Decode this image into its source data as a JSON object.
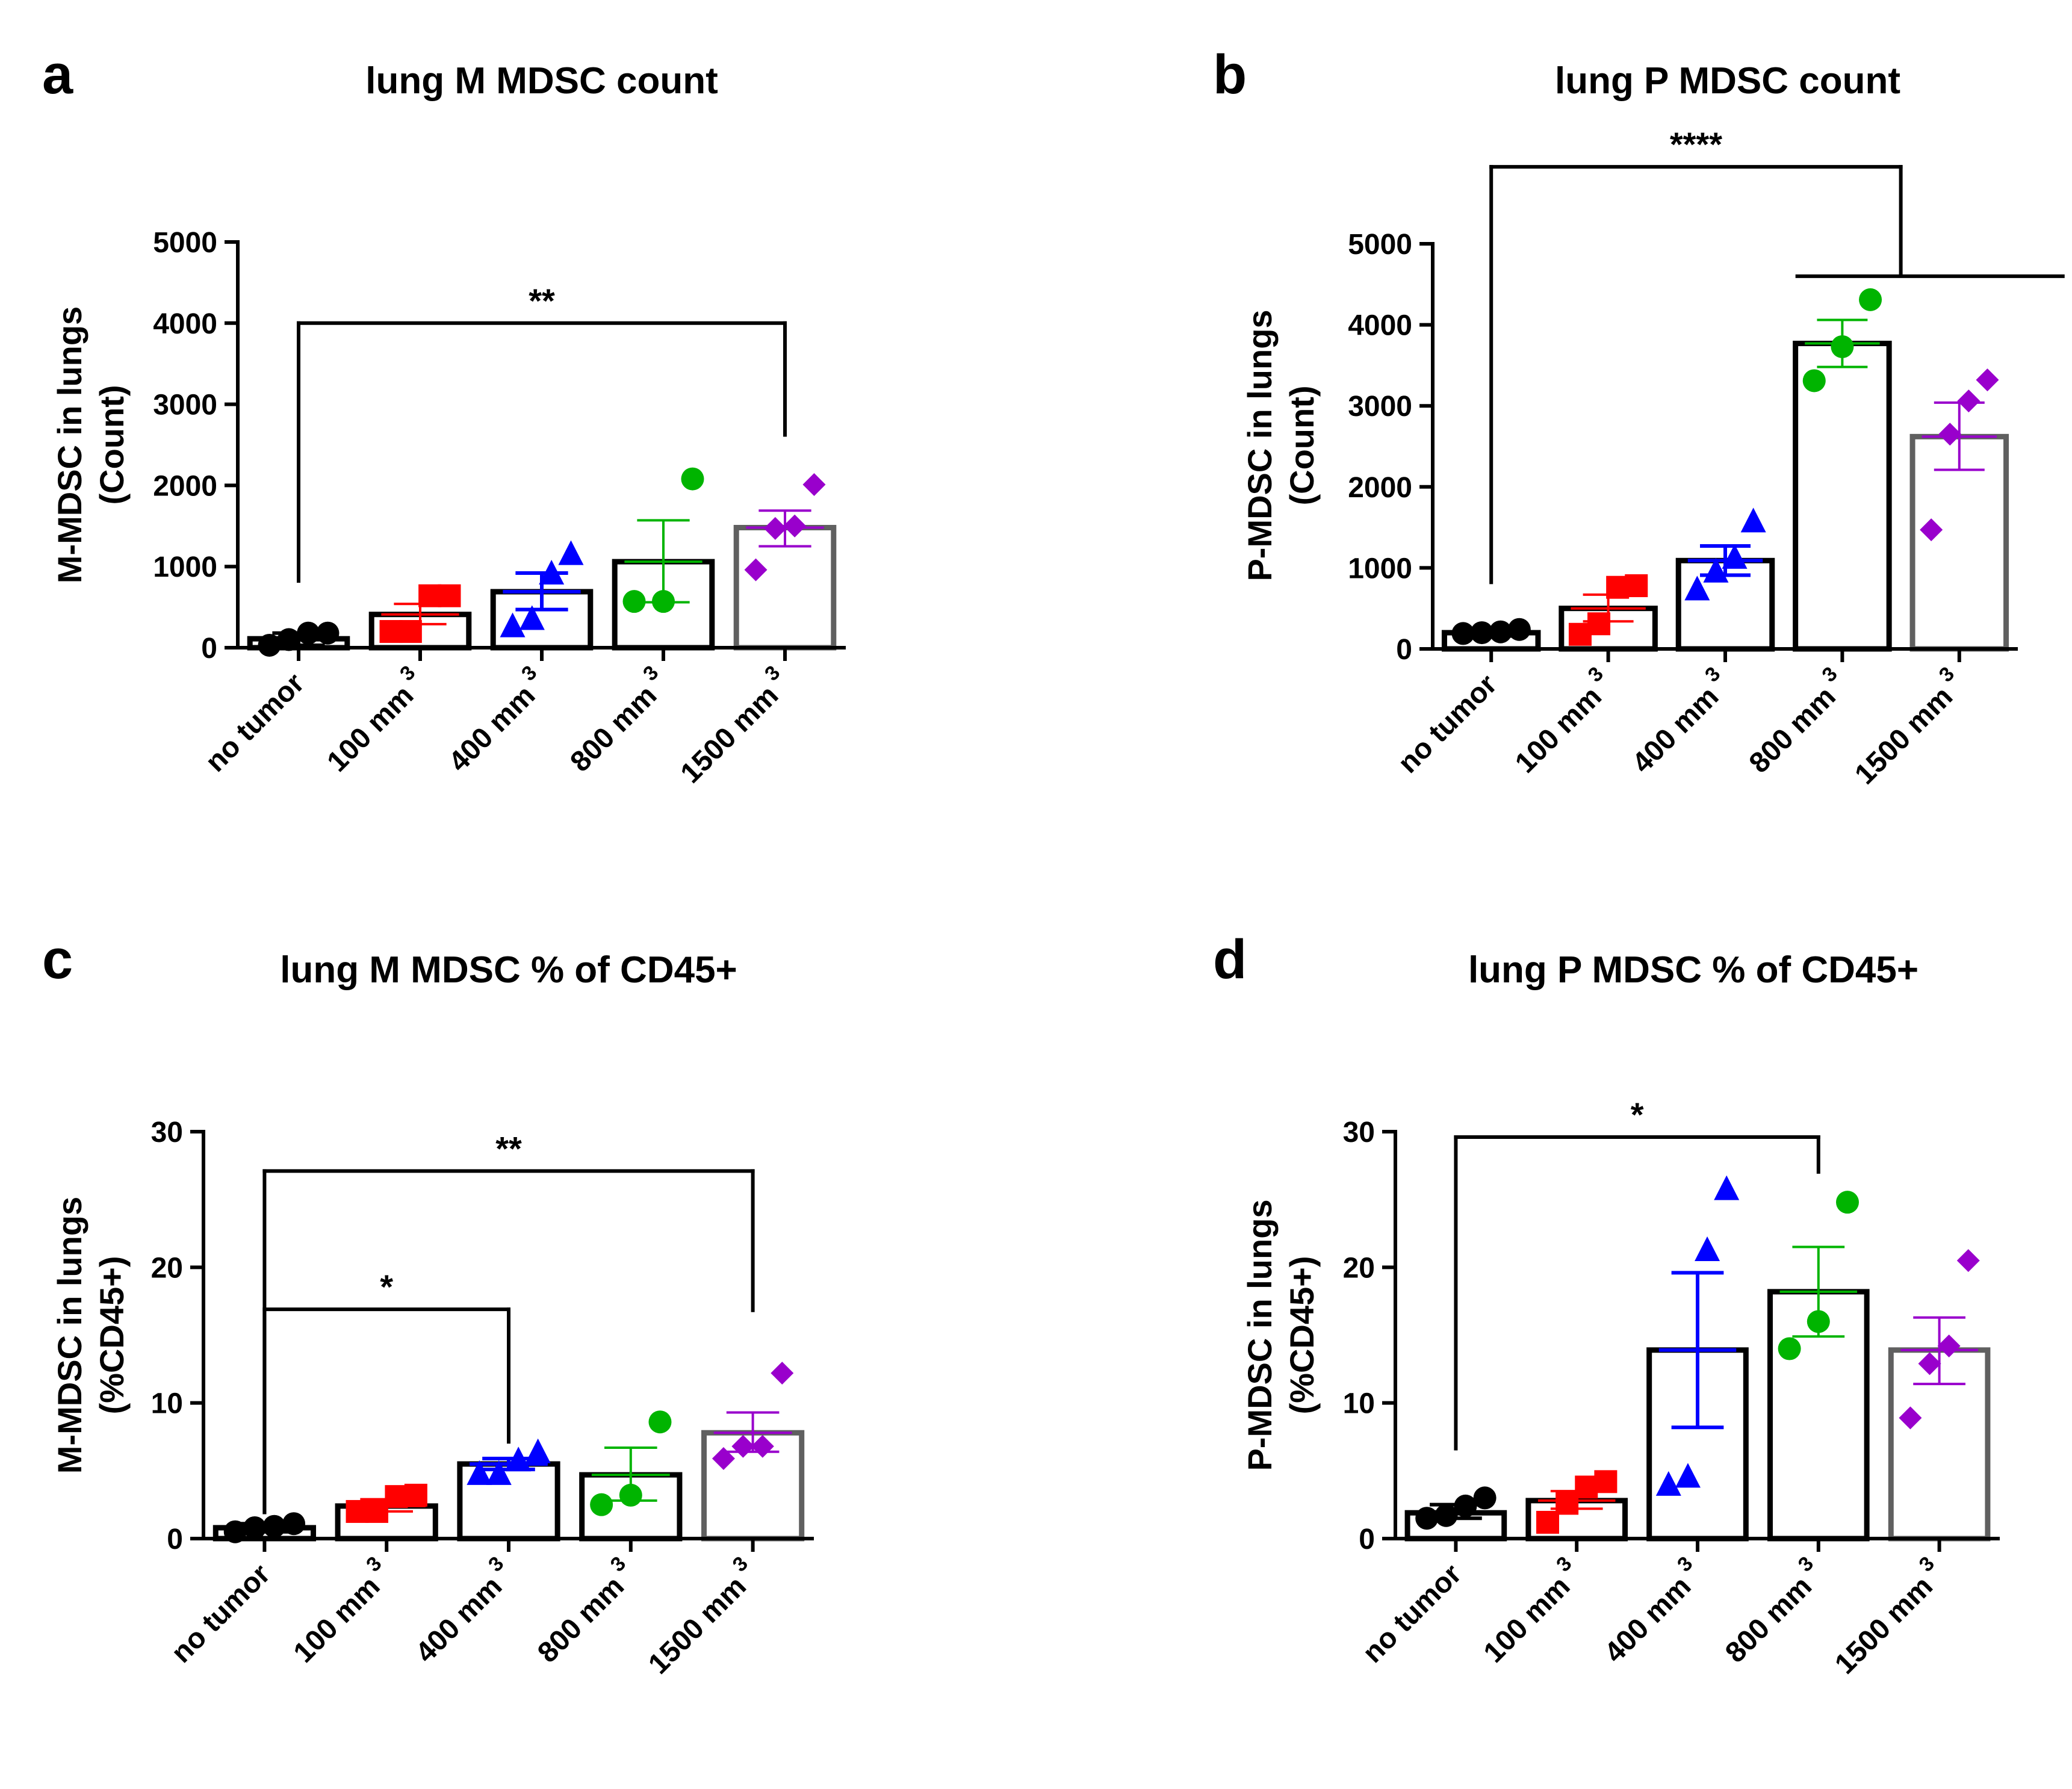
{
  "chart_data": [
    {
      "panel_label": "a",
      "type": "bar",
      "title": "lung M MDSC count",
      "ylabel_lines": [
        "M-MDSC in lungs",
        "(Count)"
      ],
      "categories": [
        {
          "text": "no tumor",
          "sup": ""
        },
        {
          "text": "100 mm",
          "sup": "3"
        },
        {
          "text": "400 mm",
          "sup": "3"
        },
        {
          "text": "800 mm",
          "sup": "3"
        },
        {
          "text": "1500 mm",
          "sup": "3"
        }
      ],
      "yticks": [
        0,
        1000,
        2000,
        3000,
        4000,
        5000
      ],
      "ylim": [
        0,
        5000
      ],
      "bars": [
        {
          "mean": 110,
          "err": [
            30,
            180
          ],
          "points": [
            30,
            100,
            180,
            180
          ],
          "marker": "circle",
          "color": "#000000",
          "edge": "#000000"
        },
        {
          "mean": 410,
          "err": [
            290,
            540
          ],
          "points": [
            200,
            200,
            640,
            640
          ],
          "marker": "square",
          "color": "#ff0000",
          "edge": "#000000"
        },
        {
          "mean": 690,
          "err": [
            470,
            920
          ],
          "points": [
            270,
            360,
            920,
            1160
          ],
          "marker": "triangle",
          "color": "#0000ff",
          "edge": "#000000"
        },
        {
          "mean": 1060,
          "err": [
            560,
            1570
          ],
          "points": [
            570,
            570,
            2080
          ],
          "marker": "circle",
          "color": "#00b400",
          "edge": "#000000"
        },
        {
          "mean": 1480,
          "err": [
            1250,
            1690
          ],
          "points": [
            960,
            1470,
            1500,
            2010
          ],
          "marker": "diamond",
          "color": "#9900cc",
          "edge": "#606060"
        }
      ],
      "brackets": [
        {
          "from": 0,
          "to": 4,
          "y": 4000,
          "left_end": 800,
          "right_end": 2600,
          "label": "**"
        }
      ]
    },
    {
      "panel_label": "b",
      "type": "bar",
      "title": "lung P MDSC count",
      "ylabel_lines": [
        "P-MDSC in lungs",
        "(Count)"
      ],
      "categories": [
        {
          "text": "no tumor",
          "sup": ""
        },
        {
          "text": "100 mm",
          "sup": "3"
        },
        {
          "text": "400 mm",
          "sup": "3"
        },
        {
          "text": "800 mm",
          "sup": "3"
        },
        {
          "text": "1500 mm",
          "sup": "3"
        }
      ],
      "yticks": [
        0,
        1000,
        2000,
        3000,
        4000,
        5000
      ],
      "ylim": [
        0,
        5000
      ],
      "bars": [
        {
          "mean": 200,
          "err": [
            160,
            240
          ],
          "points": [
            190,
            200,
            210,
            240
          ],
          "marker": "circle",
          "color": "#000000",
          "edge": "#000000"
        },
        {
          "mean": 500,
          "err": [
            340,
            670
          ],
          "points": [
            180,
            310,
            760,
            780
          ],
          "marker": "square",
          "color": "#ff0000",
          "edge": "#000000"
        },
        {
          "mean": 1090,
          "err": [
            910,
            1270
          ],
          "points": [
            740,
            960,
            1130,
            1580
          ],
          "marker": "triangle",
          "color": "#0000ff",
          "edge": "#000000"
        },
        {
          "mean": 3770,
          "err": [
            3480,
            4060
          ],
          "points": [
            3310,
            3730,
            4310
          ],
          "marker": "circle",
          "color": "#00b400",
          "edge": "#000000"
        },
        {
          "mean": 2620,
          "err": [
            2210,
            3040
          ],
          "points": [
            1470,
            2650,
            3060,
            3320
          ],
          "marker": "diamond",
          "color": "#9900cc",
          "edge": "#606060"
        }
      ],
      "brackets": [
        {
          "from": 0,
          "to": 3.5,
          "y": 5950,
          "left_end": 800,
          "right_end": 4600,
          "label": "****",
          "right_span": [
            2.6,
            4.9
          ]
        }
      ]
    },
    {
      "panel_label": "c",
      "type": "bar",
      "title": "lung M MDSC % of CD45+",
      "ylabel_lines": [
        "M-MDSC in lungs",
        "(%CD45+)"
      ],
      "categories": [
        {
          "text": "no tumor",
          "sup": ""
        },
        {
          "text": "100 mm",
          "sup": "3"
        },
        {
          "text": "400 mm",
          "sup": "3"
        },
        {
          "text": "800 mm",
          "sup": "3"
        },
        {
          "text": "1500 mm",
          "sup": "3"
        }
      ],
      "yticks": [
        0,
        10,
        20,
        30
      ],
      "ylim": [
        0,
        30
      ],
      "bars": [
        {
          "mean": 0.8,
          "err": [
            0.5,
            1.1
          ],
          "points": [
            0.5,
            0.8,
            0.9,
            1.1
          ],
          "marker": "circle",
          "color": "#000000",
          "edge": "#000000"
        },
        {
          "mean": 2.4,
          "err": [
            2.0,
            2.9
          ],
          "points": [
            2.0,
            2.0,
            3.1,
            3.2
          ],
          "marker": "square",
          "color": "#ff0000",
          "edge": "#000000"
        },
        {
          "mean": 5.5,
          "err": [
            5.1,
            5.9
          ],
          "points": [
            4.8,
            4.8,
            5.8,
            6.4
          ],
          "marker": "triangle",
          "color": "#0000ff",
          "edge": "#000000"
        },
        {
          "mean": 4.7,
          "err": [
            2.8,
            6.7
          ],
          "points": [
            2.5,
            3.2,
            8.6
          ],
          "marker": "circle",
          "color": "#00b400",
          "edge": "#000000"
        },
        {
          "mean": 7.8,
          "err": [
            6.4,
            9.3
          ],
          "points": [
            5.9,
            6.8,
            6.8,
            12.2
          ],
          "marker": "diamond",
          "color": "#9900cc",
          "edge": "#606060"
        }
      ],
      "brackets": [
        {
          "from": 0,
          "to": 4,
          "y": 27.1,
          "left_end": 1.8,
          "right_end": 16.7,
          "label": "**"
        },
        {
          "from": 0,
          "to": 2,
          "y": 16.9,
          "left_end": 1.8,
          "right_end": 7.0,
          "label": "*"
        }
      ]
    },
    {
      "panel_label": "d",
      "type": "bar",
      "title": "lung P MDSC % of CD45+",
      "ylabel_lines": [
        "P-MDSC in lungs",
        "(%CD45+)"
      ],
      "categories": [
        {
          "text": "no tumor",
          "sup": ""
        },
        {
          "text": "100 mm",
          "sup": "3"
        },
        {
          "text": "400 mm",
          "sup": "3"
        },
        {
          "text": "800 mm",
          "sup": "3"
        },
        {
          "text": "1500 mm",
          "sup": "3"
        }
      ],
      "yticks": [
        0,
        10,
        20,
        30
      ],
      "ylim": [
        0,
        30
      ],
      "bars": [
        {
          "mean": 1.9,
          "err": [
            1.5,
            2.5
          ],
          "points": [
            1.5,
            1.7,
            2.4,
            3.0
          ],
          "marker": "circle",
          "color": "#000000",
          "edge": "#000000"
        },
        {
          "mean": 2.8,
          "err": [
            2.2,
            3.5
          ],
          "points": [
            1.2,
            2.6,
            3.8,
            4.2
          ],
          "marker": "square",
          "color": "#ff0000",
          "edge": "#000000"
        },
        {
          "mean": 13.9,
          "err": [
            8.2,
            19.6
          ],
          "points": [
            4.0,
            4.6,
            21.3,
            25.8
          ],
          "marker": "triangle",
          "color": "#0000ff",
          "edge": "#000000"
        },
        {
          "mean": 18.2,
          "err": [
            14.9,
            21.5
          ],
          "points": [
            14.0,
            16.0,
            24.8
          ],
          "marker": "circle",
          "color": "#00b400",
          "edge": "#000000"
        },
        {
          "mean": 13.9,
          "err": [
            11.4,
            16.3
          ],
          "points": [
            8.9,
            12.9,
            14.2,
            20.5
          ],
          "marker": "diamond",
          "color": "#9900cc",
          "edge": "#606060"
        }
      ],
      "brackets": [
        {
          "from": 0,
          "to": 3,
          "y": 29.6,
          "left_end": 6.5,
          "right_end": 26.9,
          "label": "*"
        }
      ]
    }
  ]
}
